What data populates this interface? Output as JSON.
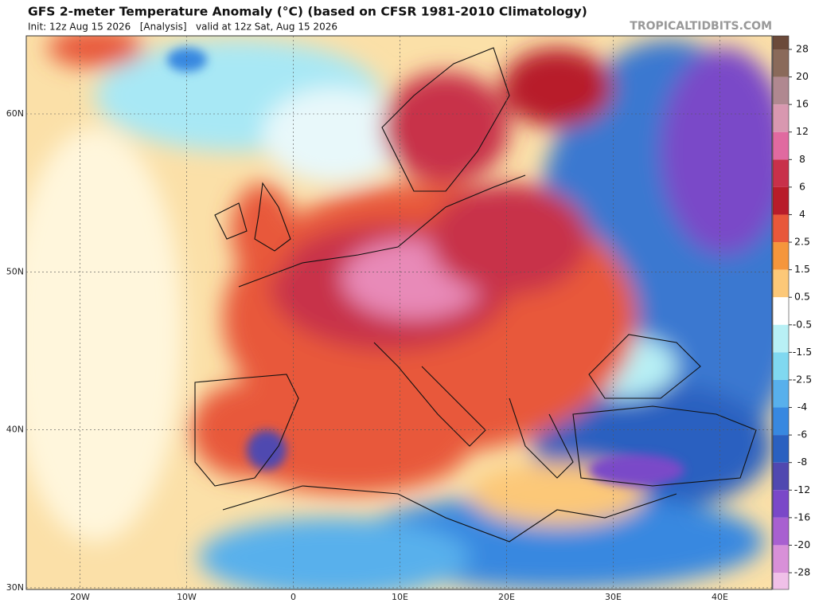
{
  "header": {
    "title": "GFS 2-meter Temperature Anomaly (°C) (based on CFSR 1981-2010 Climatology)",
    "subtitle": "Init: 12z Aug 15 2026   [Analysis]   valid at 12z Sat, Aug 15 2026",
    "site": "TROPICALTIDBITS.COM"
  },
  "map": {
    "lat_labels": [
      "60N",
      "50N",
      "40N",
      "30N"
    ],
    "lon_labels": [
      "20W",
      "10W",
      "0",
      "10E",
      "20E",
      "30E",
      "40E"
    ]
  },
  "colorbar": {
    "labels": [
      "28",
      "20",
      "16",
      "12",
      "8",
      "6",
      "4",
      "2.5",
      "1.5",
      "0.5",
      "-0.5",
      "-1.5",
      "-2.5",
      "-4",
      "-6",
      "-8",
      "-12",
      "-16",
      "-20",
      "-28"
    ],
    "colors": [
      "#6b4a3a",
      "#8a6a5a",
      "#b08890",
      "#d898b0",
      "#e06aa0",
      "#c8304a",
      "#b81c2a",
      "#e8583a",
      "#f5963c",
      "#fcc878",
      "#ffffff",
      "#b8f0f5",
      "#80d8f0",
      "#58b0ec",
      "#3888e0",
      "#2a60c0",
      "#5048b0",
      "#7a48c8",
      "#a860d0",
      "#d890d8",
      "#f0c0e8"
    ]
  }
}
